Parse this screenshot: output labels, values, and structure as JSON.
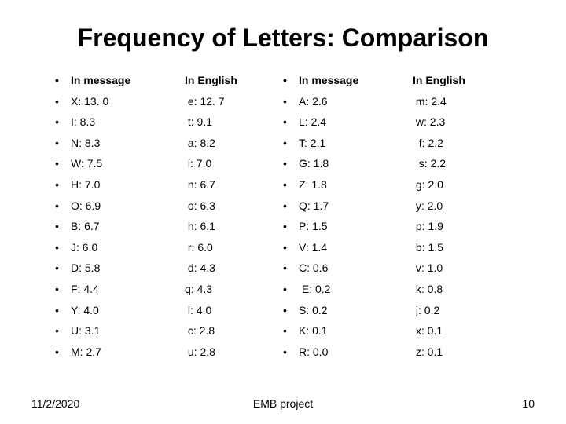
{
  "title": "Frequency of Letters: Comparison",
  "headers": {
    "message": "In message",
    "english": "In English"
  },
  "left": {
    "message": [
      "X: 13. 0",
      "I: 8.3",
      "N: 8.3",
      "W: 7.5",
      "H: 7.0",
      "O: 6.9",
      "B: 6.7",
      "J: 6.0",
      "D: 5.8",
      "F: 4.4",
      "Y: 4.0",
      "U: 3.1",
      "M: 2.7"
    ],
    "english": [
      " e: 12. 7",
      " t: 9.1",
      " a: 8.2",
      " i: 7.0",
      " n: 6.7",
      " o: 6.3",
      " h: 6.1",
      " r: 6.0",
      " d: 4.3",
      "q: 4.3",
      " l: 4.0",
      " c: 2.8",
      " u: 2.8"
    ]
  },
  "right": {
    "message": [
      "A: 2.6",
      "L: 2.4",
      "T: 2.1",
      "G: 1.8",
      "Z: 1.8",
      "Q: 1.7",
      "P: 1.5",
      "V: 1.4",
      "C: 0.6",
      " E: 0.2",
      "S: 0.2",
      "K: 0.1",
      "R: 0.0"
    ],
    "english": [
      " m: 2.4",
      " w: 2.3",
      "  f: 2.2",
      "  s: 2.2",
      " g: 2.0",
      " y: 2.0",
      " p: 1.9",
      " b: 1.5",
      " v: 1.0",
      " k: 0.8",
      " j: 0.2",
      " x: 0.1",
      " z: 0.1"
    ]
  },
  "footer": {
    "date": "11/2/2020",
    "center": "EMB project",
    "page": "10"
  },
  "style": {
    "title_fontsize": 32,
    "body_fontsize": 14,
    "bg": "#ffffff",
    "fg": "#000000"
  }
}
